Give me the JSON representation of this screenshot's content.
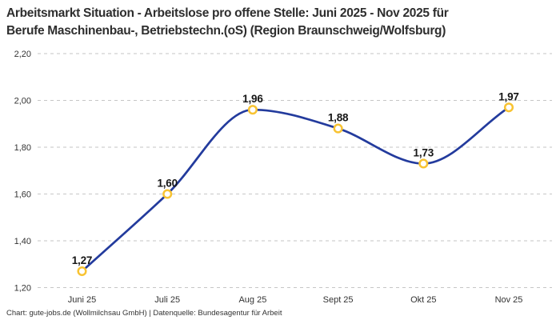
{
  "header": {
    "title_lines": [
      "Arbeitsmarkt Situation - Arbeitslose pro offene Stelle: Juni 2025 - Nov 2025 für",
      "Berufe Maschinenbau-, Betriebstechn.(oS) (Region Braunschweig/Wolfsburg)"
    ]
  },
  "footer": {
    "credit": "Chart: gute-jobs.de (Wollmilchsau GmbH) | Datenquelle: Bundesagentur für Arbeit"
  },
  "chart_data": {
    "type": "line",
    "title": "Arbeitsmarkt Situation - Arbeitslose pro offene Stelle: Juni 2025 - Nov 2025 für Berufe Maschinenbau-, Betriebstechn.(oS) (Region Braunschweig/Wolfsburg)",
    "categories": [
      "Juni 25",
      "Juli 25",
      "Aug 25",
      "Sept 25",
      "Okt 25",
      "Nov 25"
    ],
    "values": [
      1.27,
      1.6,
      1.96,
      1.88,
      1.73,
      1.97
    ],
    "value_labels": [
      "1,27",
      "1,60",
      "1,96",
      "1,88",
      "1,73",
      "1,97"
    ],
    "y_ticks": [
      2.2,
      2.0,
      1.8,
      1.6,
      1.4,
      1.2
    ],
    "y_tick_labels": [
      "2,20",
      "2,00",
      "1,80",
      "1,60",
      "1,40",
      "1,20"
    ],
    "ylim": [
      1.2,
      2.2
    ],
    "xlabel": "",
    "ylabel": "",
    "grid": "horizontal-dashed",
    "legend": "none",
    "line_style": "smooth-monotone",
    "source": "Bundesagentur für Arbeit",
    "colors": {
      "line": "#233b9d",
      "marker_ring": "#f8c332",
      "marker_fill": "#ffffff",
      "grid": "#c6c6c6",
      "title_text": "#2e2e2e",
      "axis_text": "#333333",
      "value_label_text": "#161616",
      "background": "#ffffff"
    }
  }
}
